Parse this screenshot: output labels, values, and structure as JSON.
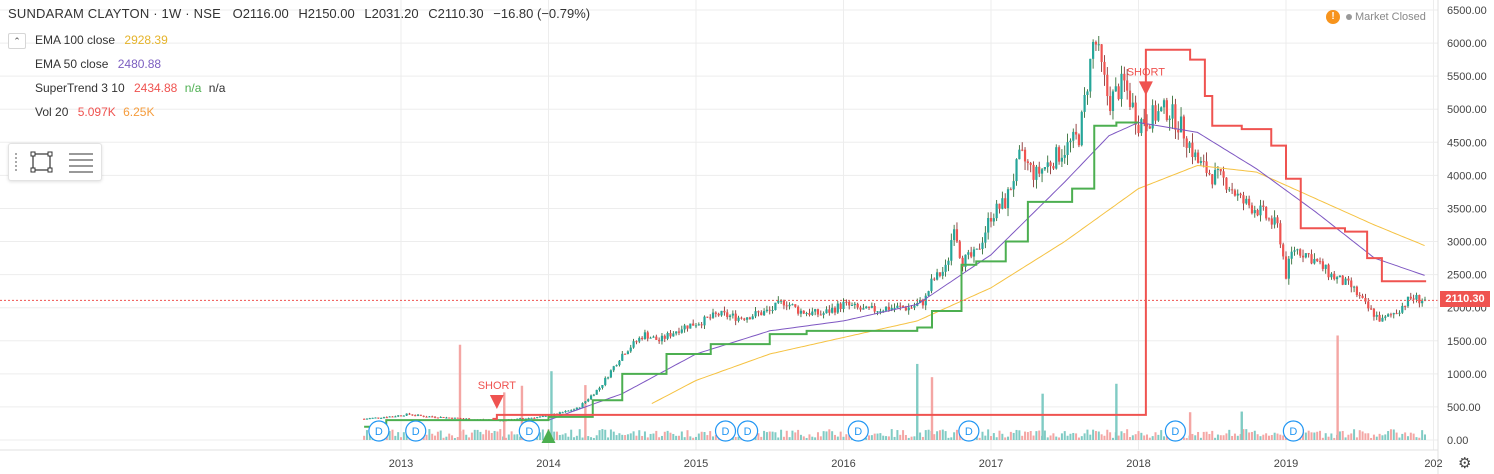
{
  "symbol": "SUNDARAM CLAYTON · 1W · NSE",
  "ohlc": {
    "open": "O2116.00",
    "high": "H2150.00",
    "low": "L2031.20",
    "close": "C2110.30",
    "change": "−16.80 (−0.79%)"
  },
  "indicators": [
    {
      "label": "EMA 100 close",
      "values": [
        "2928.39"
      ],
      "colors": [
        "#e5b32b"
      ]
    },
    {
      "label": "EMA 50 close",
      "values": [
        "2480.88"
      ],
      "colors": [
        "#7b5ec0"
      ]
    },
    {
      "label": "SuperTrend 3 10",
      "values": [
        "2434.88",
        "n/a",
        "n/a"
      ],
      "colors": [
        "#ef5350",
        "#4caf50",
        "#333333"
      ]
    },
    {
      "label": "Vol 20",
      "values": [
        "5.097K",
        "6.25K"
      ],
      "colors": [
        "#ef5350",
        "#f59c3c"
      ]
    }
  ],
  "market_status": "Market Closed",
  "last_price": "2110.30",
  "colors": {
    "up": "#26a69a",
    "down": "#ef5350",
    "vol_up": "#80cbc4",
    "vol_down": "#f4a6a4",
    "ema100": "#f5c242",
    "ema50": "#7e57c2",
    "st_up": "#4caf50",
    "st_down": "#ef5350"
  },
  "chart_data": {
    "type": "candlestick",
    "timeframe": "1W",
    "x_ticks": [
      "2013",
      "2014",
      "2015",
      "2016",
      "2017",
      "2018",
      "2019",
      "202"
    ],
    "y_ticks": [
      "6500.00",
      "6000.00",
      "5500.00",
      "5000.00",
      "4500.00",
      "4000.00",
      "3500.00",
      "3000.00",
      "2500.00",
      "2000.00",
      "1500.00",
      "1000.00",
      "500.00",
      "0.00"
    ],
    "ylim": [
      0,
      6500
    ],
    "xlim": [
      2012.7,
      2020.0
    ],
    "close_series": [
      [
        2012.75,
        320
      ],
      [
        2012.95,
        360
      ],
      [
        2013.05,
        390
      ],
      [
        2013.15,
        360
      ],
      [
        2013.3,
        340
      ],
      [
        2013.5,
        310
      ],
      [
        2013.7,
        295
      ],
      [
        2013.85,
        330
      ],
      [
        2014.0,
        360
      ],
      [
        2014.2,
        480
      ],
      [
        2014.35,
        800
      ],
      [
        2014.5,
        1300
      ],
      [
        2014.65,
        1600
      ],
      [
        2014.75,
        1500
      ],
      [
        2014.9,
        1700
      ],
      [
        2015.05,
        1800
      ],
      [
        2015.15,
        1900
      ],
      [
        2015.3,
        1850
      ],
      [
        2015.5,
        1950
      ],
      [
        2015.6,
        2100
      ],
      [
        2015.7,
        1950
      ],
      [
        2015.85,
        1900
      ],
      [
        2016.0,
        2050
      ],
      [
        2016.15,
        1950
      ],
      [
        2016.3,
        2000
      ],
      [
        2016.45,
        2000
      ],
      [
        2016.55,
        2100
      ],
      [
        2016.6,
        2400
      ],
      [
        2016.7,
        2600
      ],
      [
        2016.75,
        3300
      ],
      [
        2016.8,
        2700
      ],
      [
        2016.9,
        2800
      ],
      [
        2017.0,
        3400
      ],
      [
        2017.1,
        3600
      ],
      [
        2017.2,
        4300
      ],
      [
        2017.3,
        4000
      ],
      [
        2017.4,
        4200
      ],
      [
        2017.5,
        4400
      ],
      [
        2017.6,
        4600
      ],
      [
        2017.7,
        6100
      ],
      [
        2017.75,
        5600
      ],
      [
        2017.8,
        5100
      ],
      [
        2017.9,
        5400
      ],
      [
        2018.0,
        4800
      ],
      [
        2018.1,
        4900
      ],
      [
        2018.2,
        5000
      ],
      [
        2018.3,
        4700
      ],
      [
        2018.4,
        4200
      ],
      [
        2018.5,
        4000
      ],
      [
        2018.6,
        3900
      ],
      [
        2018.7,
        3600
      ],
      [
        2018.8,
        3500
      ],
      [
        2018.95,
        3200
      ],
      [
        2019.0,
        2500
      ],
      [
        2019.05,
        2900
      ],
      [
        2019.15,
        2800
      ],
      [
        2019.3,
        2500
      ],
      [
        2019.45,
        2300
      ],
      [
        2019.55,
        2000
      ],
      [
        2019.65,
        1800
      ],
      [
        2019.75,
        1950
      ],
      [
        2019.85,
        2150
      ],
      [
        2019.95,
        2110
      ]
    ],
    "ema100_series": [
      [
        2014.7,
        550
      ],
      [
        2015.0,
        900
      ],
      [
        2015.5,
        1300
      ],
      [
        2016.0,
        1550
      ],
      [
        2016.5,
        1800
      ],
      [
        2017.0,
        2300
      ],
      [
        2017.5,
        3000
      ],
      [
        2018.0,
        3800
      ],
      [
        2018.4,
        4150
      ],
      [
        2018.8,
        4050
      ],
      [
        2019.2,
        3650
      ],
      [
        2019.6,
        3250
      ],
      [
        2019.95,
        2930
      ]
    ],
    "ema50_series": [
      [
        2014.0,
        300
      ],
      [
        2014.5,
        700
      ],
      [
        2015.0,
        1300
      ],
      [
        2015.5,
        1650
      ],
      [
        2016.0,
        1800
      ],
      [
        2016.5,
        2050
      ],
      [
        2017.0,
        2800
      ],
      [
        2017.5,
        3900
      ],
      [
        2017.8,
        4600
      ],
      [
        2018.0,
        4800
      ],
      [
        2018.4,
        4650
      ],
      [
        2018.8,
        4100
      ],
      [
        2019.2,
        3450
      ],
      [
        2019.6,
        2750
      ],
      [
        2019.95,
        2480
      ]
    ],
    "supertrend_up_series": [
      [
        2012.75,
        200
      ],
      [
        2012.9,
        300
      ],
      [
        2013.6,
        300
      ],
      [
        2014.0,
        350
      ],
      [
        2014.3,
        600
      ],
      [
        2014.5,
        1000
      ],
      [
        2014.8,
        1300
      ],
      [
        2015.1,
        1450
      ],
      [
        2015.5,
        1600
      ],
      [
        2015.75,
        1650
      ],
      [
        2016.5,
        1700
      ],
      [
        2016.6,
        1950
      ],
      [
        2016.8,
        2650
      ],
      [
        2016.9,
        2700
      ],
      [
        2017.1,
        3000
      ],
      [
        2017.25,
        3600
      ],
      [
        2017.55,
        3800
      ],
      [
        2017.7,
        4750
      ],
      [
        2017.85,
        4800
      ],
      [
        2018.0,
        4800
      ]
    ],
    "supertrend_down_series": [
      [
        2013.62,
        320
      ],
      [
        2013.65,
        380
      ],
      [
        2013.95,
        380
      ],
      [
        2018.05,
        5900
      ],
      [
        2018.35,
        5750
      ],
      [
        2018.45,
        5200
      ],
      [
        2018.5,
        4750
      ],
      [
        2018.7,
        4700
      ],
      [
        2018.9,
        4450
      ],
      [
        2019.0,
        3950
      ],
      [
        2019.1,
        3200
      ],
      [
        2019.4,
        3150
      ],
      [
        2019.55,
        2750
      ],
      [
        2019.65,
        2400
      ],
      [
        2019.95,
        2400
      ]
    ],
    "signals": [
      {
        "type": "SHORT",
        "x": 2013.65,
        "y": 560
      },
      {
        "type": "SHORT",
        "x": 2018.05,
        "y": 5300
      },
      {
        "type": "LONG",
        "x": 2014.0,
        "y": 0
      }
    ],
    "dividend_markers": [
      2012.85,
      2013.1,
      2013.87,
      2015.2,
      2015.35,
      2016.1,
      2016.85,
      2018.25,
      2019.05
    ],
    "volume_spikes": [
      {
        "x": 2013.4,
        "v": 1440,
        "dir": "down"
      },
      {
        "x": 2013.7,
        "v": 720,
        "dir": "down"
      },
      {
        "x": 2013.82,
        "v": 820,
        "dir": "down"
      },
      {
        "x": 2014.02,
        "v": 1040,
        "dir": "up"
      },
      {
        "x": 2014.25,
        "v": 830,
        "dir": "down"
      },
      {
        "x": 2016.5,
        "v": 1150,
        "dir": "up"
      },
      {
        "x": 2016.6,
        "v": 950,
        "dir": "down"
      },
      {
        "x": 2017.35,
        "v": 700,
        "dir": "up"
      },
      {
        "x": 2017.85,
        "v": 850,
        "dir": "up"
      },
      {
        "x": 2018.35,
        "v": 420,
        "dir": "down"
      },
      {
        "x": 2018.7,
        "v": 430,
        "dir": "up"
      },
      {
        "x": 2019.35,
        "v": 1580,
        "dir": "down"
      }
    ]
  }
}
